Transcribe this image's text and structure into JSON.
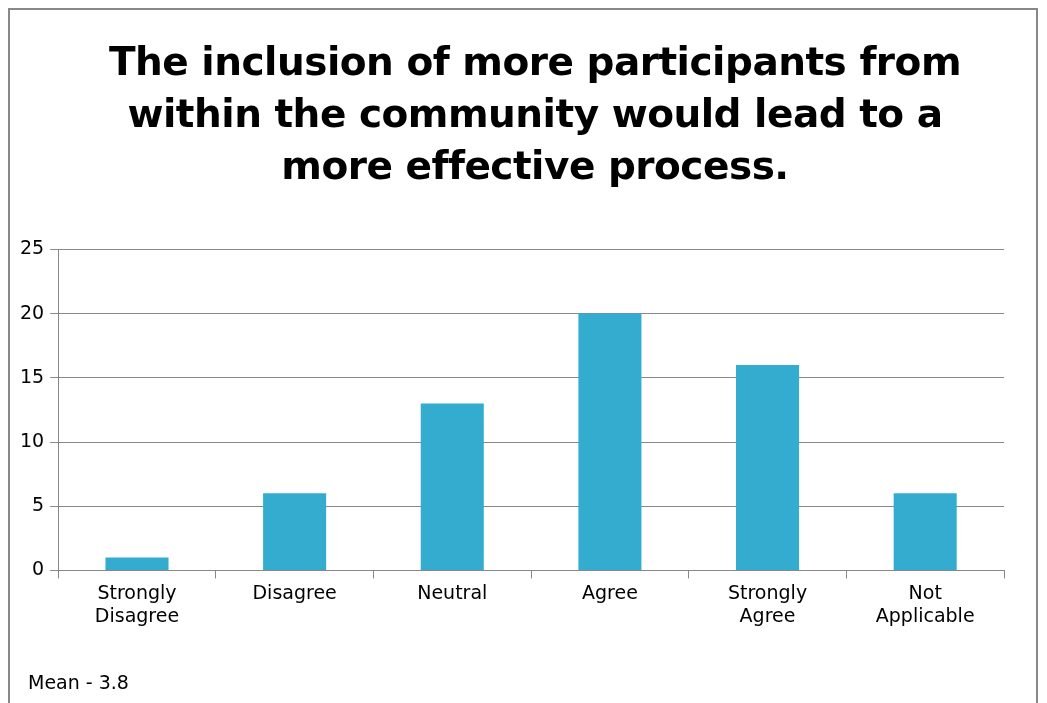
{
  "chart_data": {
    "type": "bar",
    "title": "The inclusion of more participants from within the community would lead to a more effective process.",
    "categories": [
      "Strongly Disagree",
      "Disagree",
      "Neutral",
      "Agree",
      "Strongly Agree",
      "Not Applicable"
    ],
    "values": [
      1,
      6,
      13,
      20,
      16,
      6
    ],
    "color": "#33accf",
    "ylim": [
      0,
      25
    ],
    "yticks": [
      0,
      5,
      10,
      15,
      20,
      25
    ],
    "grid": "y",
    "legend": false,
    "annotations": [
      "Mean - 3.8"
    ]
  }
}
